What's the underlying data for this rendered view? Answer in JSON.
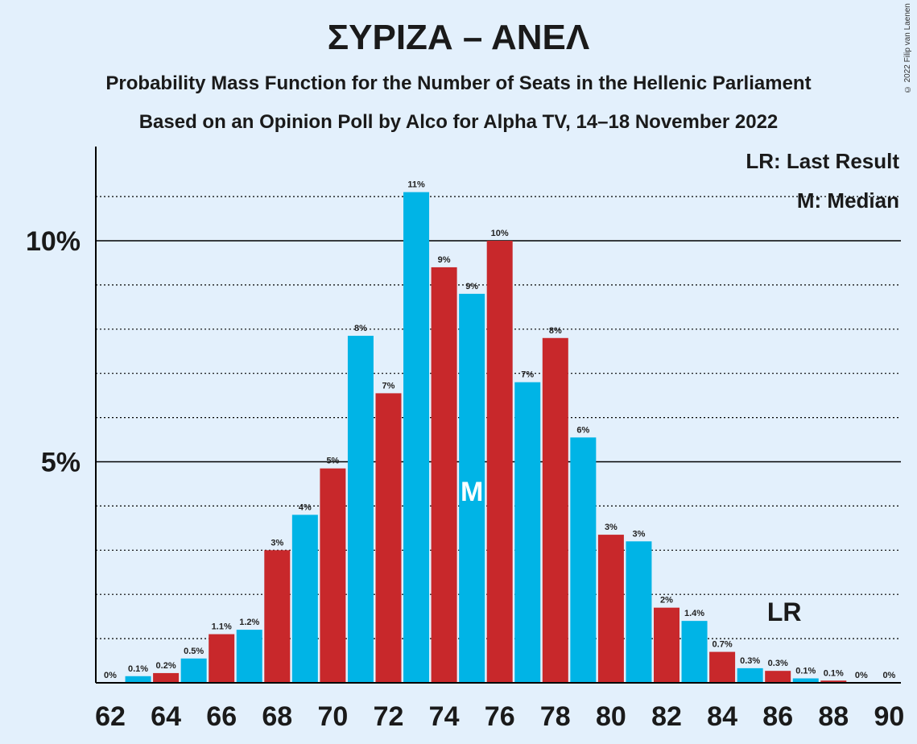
{
  "chart_data": {
    "type": "bar",
    "title": "ΣΥΡΙΖΑ – ΑΝΕΛ",
    "subtitle": "Probability Mass Function for the Number of Seats in the Hellenic Parliament",
    "subtitle2": "Based on an Opinion Poll by Alco for Alpha TV, 14–18 November 2022",
    "copyright": "© 2022 Filip van Laenen",
    "legend": [
      "LR: Last Result",
      "M: Median"
    ],
    "legend_placement": "top-right",
    "x": [
      62,
      63,
      64,
      65,
      66,
      67,
      68,
      69,
      70,
      71,
      72,
      73,
      74,
      75,
      76,
      77,
      78,
      79,
      80,
      81,
      82,
      83,
      84,
      85,
      86,
      87,
      88,
      89,
      90
    ],
    "values": [
      0.0,
      0.15,
      0.22,
      0.55,
      1.1,
      1.2,
      3.0,
      3.8,
      4.85,
      7.85,
      6.55,
      11.1,
      9.4,
      8.8,
      10.0,
      6.8,
      7.8,
      5.55,
      3.35,
      3.2,
      1.7,
      1.4,
      0.7,
      0.33,
      0.27,
      0.1,
      0.05,
      0.0,
      0.0
    ],
    "labels": [
      "0%",
      "0.1%",
      "0.2%",
      "0.5%",
      "1.1%",
      "1.2%",
      "3%",
      "4%",
      "5%",
      "8%",
      "7%",
      "11%",
      "9%",
      "9%",
      "10%",
      "7%",
      "8%",
      "6%",
      "3%",
      "3%",
      "2%",
      "1.4%",
      "0.7%",
      "0.3%",
      "0.3%",
      "0.1%",
      "0.1%",
      "0%",
      "0%"
    ],
    "x_tick_labels": [
      "62",
      "64",
      "66",
      "68",
      "70",
      "72",
      "74",
      "76",
      "78",
      "80",
      "82",
      "84",
      "86",
      "88",
      "90"
    ],
    "y_tick_labels": [
      "5%",
      "10%"
    ],
    "ylim": [
      0,
      12
    ],
    "grid": true,
    "median_seat": 75,
    "median_marker": "M",
    "last_result_seat": 86,
    "last_result_marker": "LR",
    "colors": {
      "odd": "#00b4e6",
      "even": "#c8282b",
      "background": "#e3f0fc"
    }
  }
}
